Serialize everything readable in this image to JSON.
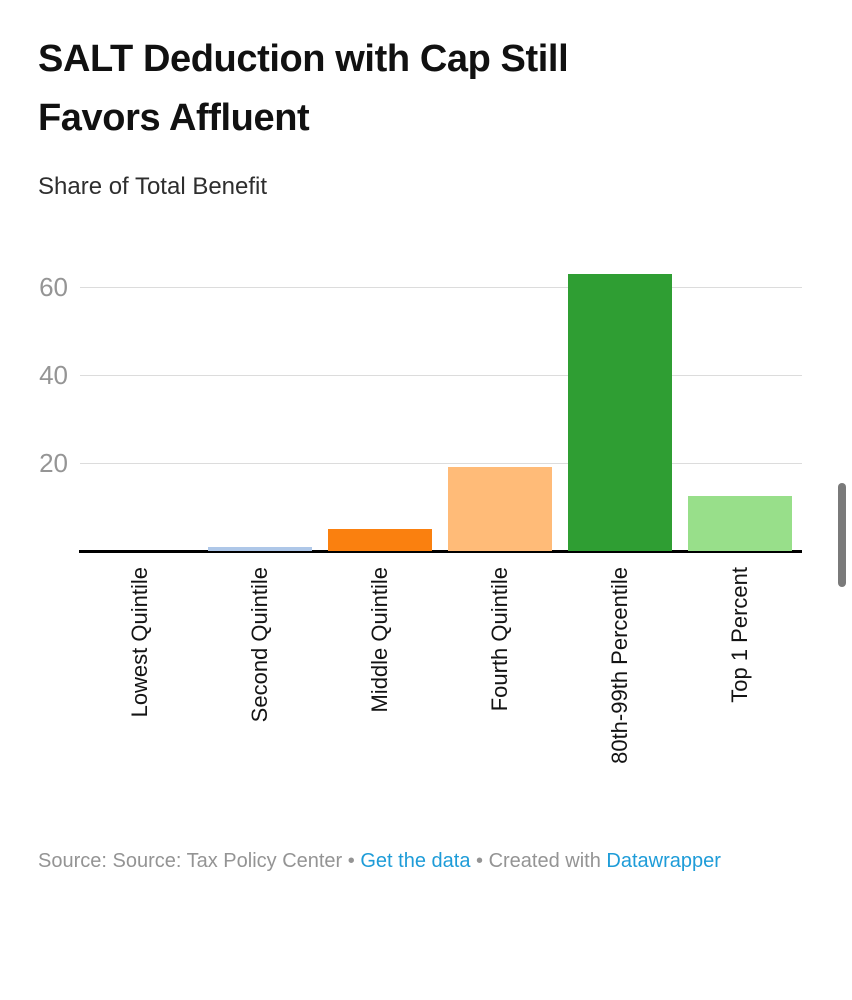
{
  "header": {
    "title": "SALT Deduction with Cap Still\nFavors Affluent",
    "subtitle": "Share of Total Benefit"
  },
  "chart_data": {
    "type": "bar",
    "title": "SALT Deduction with Cap Still Favors Affluent",
    "ylabel": "Share of Total Benefit",
    "xlabel": "",
    "categories": [
      "Lowest Quintile",
      "Second Quintile",
      "Middle Quintile",
      "Fourth Quintile",
      "80th-99th Percentile",
      "Top 1 Percent"
    ],
    "values": [
      0,
      1,
      5,
      19,
      63,
      12.5
    ],
    "bar_colors": [
      "#aec7e8",
      "#aec7e8",
      "#fa800f",
      "#ffbb78",
      "#2f9e33",
      "#98df8a"
    ],
    "yticks": [
      20,
      40,
      60
    ],
    "ylim": [
      0,
      65
    ],
    "grid": true,
    "legend": "none",
    "x_label_rotation": -90
  },
  "footer": {
    "source_text": "Source: Source: Tax Policy Center",
    "sep": "•",
    "get_data_label": "Get the data",
    "created_with_text": "Created with",
    "datawrapper_label": "Datawrapper",
    "text_color": "#949494",
    "link_color": "#1e9cd8"
  },
  "colors": {
    "axis_line": "#000000",
    "gridline": "#dcdcdc",
    "tick_label": "#959595"
  }
}
